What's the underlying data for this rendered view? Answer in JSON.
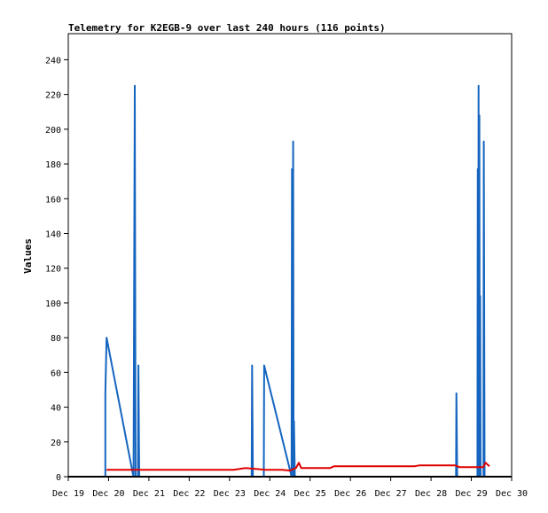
{
  "chart_data": {
    "type": "line",
    "title": "Telemetry for K2EGB-9 over last 240 hours (116 points)",
    "xlabel": "",
    "ylabel": "Values",
    "ylim": [
      0,
      255
    ],
    "yticks": [
      0,
      20,
      40,
      60,
      80,
      100,
      120,
      140,
      160,
      180,
      200,
      220,
      240
    ],
    "xlim": [
      "Dec 19",
      "Dec 30"
    ],
    "xticks": [
      "Dec 19",
      "Dec 20",
      "Dec 21",
      "Dec 22",
      "Dec 23",
      "Dec 24",
      "Dec 25",
      "Dec 26",
      "Dec 27",
      "Dec 28",
      "Dec 29",
      "Dec 30"
    ],
    "grid": false,
    "legend": "none",
    "series": [
      {
        "color": "#1565c0",
        "points": [
          [
            0.92,
            0
          ],
          [
            0.92,
            48
          ],
          [
            0.95,
            80
          ],
          [
            1.6,
            2
          ],
          [
            1.62,
            0
          ],
          [
            1.65,
            225
          ],
          [
            1.67,
            0
          ],
          [
            1.73,
            0
          ],
          [
            1.74,
            64
          ],
          [
            1.76,
            0
          ],
          [
            4.55,
            0
          ],
          [
            4.56,
            64
          ],
          [
            4.58,
            0
          ],
          [
            4.85,
            0
          ],
          [
            4.86,
            64
          ],
          [
            5.52,
            2
          ],
          [
            5.54,
            0
          ],
          [
            5.55,
            177
          ],
          [
            5.56,
            0
          ],
          [
            5.58,
            193
          ],
          [
            5.59,
            0
          ],
          [
            5.6,
            32
          ],
          [
            5.62,
            0
          ],
          [
            9.62,
            0
          ],
          [
            9.63,
            48
          ],
          [
            9.65,
            0
          ],
          [
            10.15,
            0
          ],
          [
            10.16,
            177
          ],
          [
            10.17,
            0
          ],
          [
            10.18,
            225
          ],
          [
            10.19,
            0
          ],
          [
            10.2,
            208
          ],
          [
            10.21,
            0
          ],
          [
            10.22,
            104
          ],
          [
            10.23,
            0
          ],
          [
            10.3,
            0
          ],
          [
            10.31,
            193
          ],
          [
            10.33,
            0
          ]
        ]
      },
      {
        "color": "#e00000",
        "points": [
          [
            0.95,
            4
          ],
          [
            4.1,
            4
          ],
          [
            4.4,
            5
          ],
          [
            4.9,
            4
          ],
          [
            5.3,
            4
          ],
          [
            5.5,
            3.5
          ],
          [
            5.65,
            5
          ],
          [
            5.72,
            8
          ],
          [
            5.78,
            5
          ],
          [
            6.5,
            5
          ],
          [
            6.6,
            6
          ],
          [
            7.5,
            6
          ],
          [
            8.6,
            6
          ],
          [
            8.7,
            6.5
          ],
          [
            9.6,
            6.5
          ],
          [
            9.7,
            5.5
          ],
          [
            10.3,
            5.5
          ],
          [
            10.35,
            8
          ],
          [
            10.45,
            6
          ]
        ]
      }
    ]
  }
}
